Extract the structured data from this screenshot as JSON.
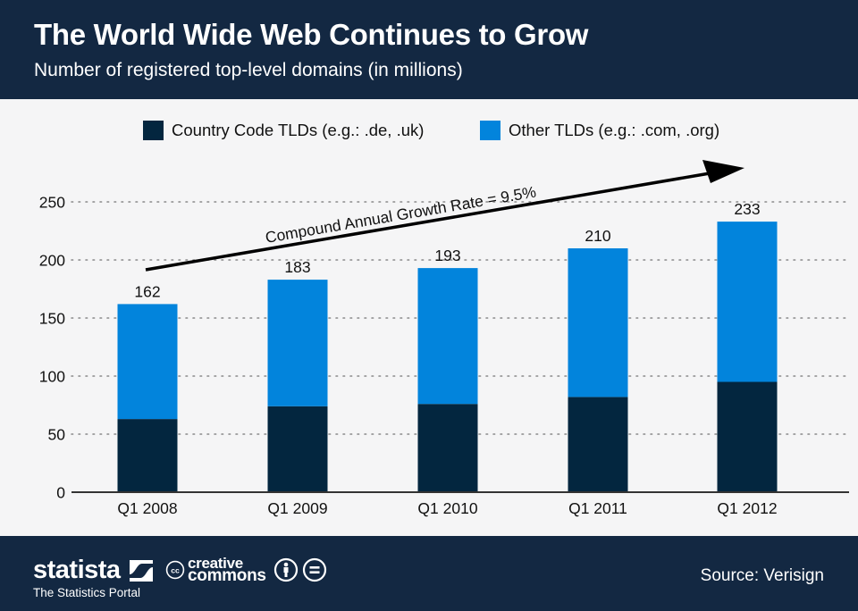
{
  "header": {
    "title": "The World Wide Web Continues to Grow",
    "subtitle": "Number of registered top-level domains (in millions)"
  },
  "legend": [
    {
      "label": "Country Code TLDs (e.g.: .de, .uk)",
      "color": "#03263f"
    },
    {
      "label": "Other TLDs (e.g.: .com, .org)",
      "color": "#0284dc"
    }
  ],
  "annotation": {
    "text": "Compound Annual Growth Rate = 9.5%",
    "icon": "arrow-up-right-icon"
  },
  "chart_data": {
    "type": "bar",
    "stacked": true,
    "title": "The World Wide Web Continues to Grow",
    "subtitle": "Number of registered top-level domains (in millions)",
    "xlabel": "",
    "ylabel": "",
    "categories": [
      "Q1 2008",
      "Q1 2009",
      "Q1 2010",
      "Q1 2011",
      "Q1 2012"
    ],
    "series": [
      {
        "name": "Country Code TLDs (e.g.: .de, .uk)",
        "color": "#03263f",
        "values": [
          63,
          74,
          76,
          82,
          95
        ]
      },
      {
        "name": "Other TLDs (e.g.: .com, .org)",
        "color": "#0284dc",
        "values": [
          99,
          109,
          117,
          128,
          138
        ]
      }
    ],
    "totals": [
      162,
      183,
      193,
      210,
      233
    ],
    "total_labels": [
      "162",
      "183",
      "193",
      "210",
      "233"
    ],
    "ylim": [
      0,
      250
    ],
    "yticks": [
      0,
      50,
      100,
      150,
      200,
      250
    ],
    "ytick_labels": [
      "0",
      "50",
      "100",
      "150",
      "200",
      "250"
    ],
    "grid": true,
    "grid_style": "dotted",
    "legend_position": "top-center",
    "annotations": [
      "Compound Annual Growth Rate = 9.5%"
    ]
  },
  "footer": {
    "brand": "statista",
    "tagline": "The Statistics Portal",
    "license_line1": "creative",
    "license_line2": "commons",
    "license_icons": [
      "cc-icon",
      "attribution-icon",
      "no-derivatives-icon"
    ],
    "source": "Source: Verisign"
  }
}
